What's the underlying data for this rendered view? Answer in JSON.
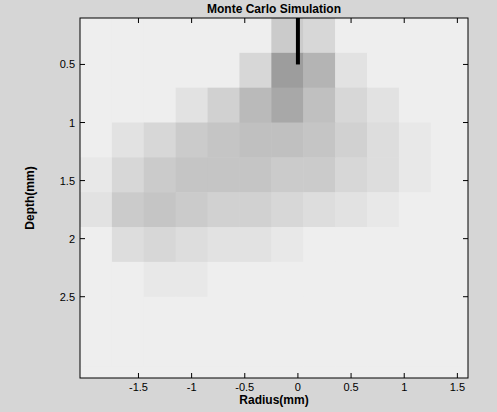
{
  "chart_data": {
    "type": "heatmap",
    "title": "Monte Carlo Simulation",
    "x_label": "Radius(mm)",
    "y_label": "Depth(mm)",
    "xlim": [
      -2.05,
      1.6
    ],
    "ylim": [
      0.1,
      3.2
    ],
    "xticks": [
      -1.5,
      -1,
      -0.5,
      0,
      0.5,
      1,
      1.5
    ],
    "yticks": [
      0.5,
      1,
      1.5,
      2,
      2.5
    ],
    "color": "#7a7a7a",
    "x": [
      -1.9,
      -1.6,
      -1.3,
      -1.0,
      -0.7,
      -0.4,
      -0.1,
      0.2,
      0.5,
      0.8,
      1.1,
      1.4
    ],
    "y": [
      0.25,
      0.55,
      0.85,
      1.15,
      1.45,
      1.75,
      2.05,
      2.35,
      2.65,
      2.95
    ],
    "values": [
      [
        0,
        0,
        0,
        0,
        0,
        0,
        0.3,
        0.2,
        0,
        0,
        0,
        0
      ],
      [
        0,
        0,
        0,
        0,
        0,
        0.2,
        0.7,
        0.5,
        0.1,
        0,
        0,
        0
      ],
      [
        0,
        0,
        0,
        0.1,
        0.25,
        0.45,
        0.6,
        0.4,
        0.2,
        0.1,
        0,
        0
      ],
      [
        0,
        0.1,
        0.2,
        0.3,
        0.35,
        0.4,
        0.4,
        0.35,
        0.25,
        0.15,
        0.05,
        0
      ],
      [
        0.05,
        0.2,
        0.3,
        0.35,
        0.35,
        0.35,
        0.3,
        0.3,
        0.2,
        0.15,
        0.05,
        0
      ],
      [
        0.1,
        0.3,
        0.35,
        0.3,
        0.25,
        0.25,
        0.2,
        0.15,
        0.1,
        0.05,
        0,
        0
      ],
      [
        0,
        0.15,
        0.2,
        0.15,
        0.1,
        0.1,
        0.05,
        0,
        0,
        0,
        0,
        0
      ],
      [
        0,
        0,
        0.05,
        0.05,
        0,
        0,
        0,
        0,
        0,
        0,
        0,
        0
      ],
      [
        0,
        0,
        0,
        0,
        0,
        0,
        0,
        0,
        0,
        0,
        0,
        0
      ],
      [
        0,
        0,
        0,
        0,
        0,
        0,
        0,
        0,
        0,
        0,
        0,
        0
      ]
    ],
    "probe": {
      "x": 0,
      "y": [
        0.1,
        0.5
      ]
    }
  }
}
